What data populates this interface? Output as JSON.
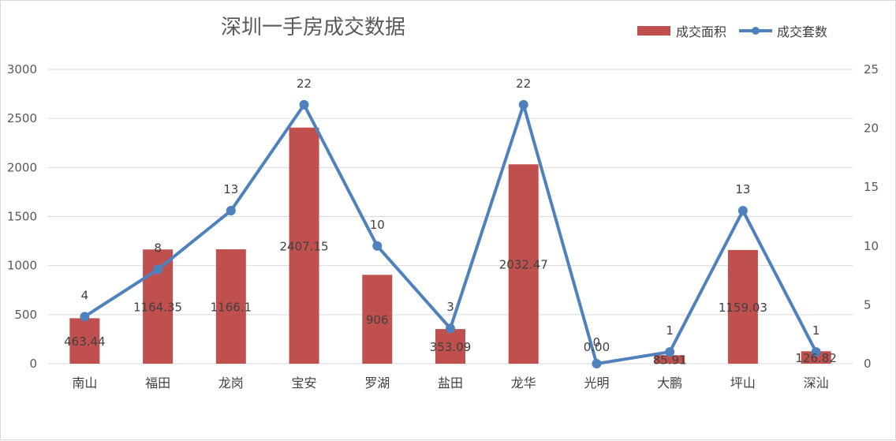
{
  "chart_data": {
    "type": "bar",
    "title": "深圳一手房成交数据",
    "categories": [
      "南山",
      "福田",
      "龙岗",
      "宝安",
      "罗湖",
      "盐田",
      "龙华",
      "光明",
      "大鹏",
      "坪山",
      "深汕"
    ],
    "series": [
      {
        "name": "成交面积",
        "type": "bar",
        "axis": "left",
        "color": "#C0504D",
        "values": [
          463.44,
          1164.35,
          1166.1,
          2407.15,
          906,
          353.09,
          2032.47,
          0.0,
          85.91,
          1159.03,
          126.82
        ],
        "labels": [
          "463.44",
          "1164.35",
          "1166.1",
          "2407.15",
          "906",
          "353.09",
          "2032.47",
          "0.00",
          "85.91",
          "1159.03",
          "126.82"
        ]
      },
      {
        "name": "成交套数",
        "type": "line",
        "axis": "right",
        "color": "#4F81BD",
        "values": [
          4,
          8,
          13,
          22,
          10,
          3,
          22,
          0,
          1,
          13,
          1
        ],
        "labels": [
          "4",
          "8",
          "13",
          "22",
          "10",
          "3",
          "22",
          "0",
          "1",
          "13",
          "1"
        ]
      }
    ],
    "y_left": {
      "min": 0,
      "max": 3000,
      "ticks": [
        "0",
        "500",
        "1000",
        "1500",
        "2000",
        "2500",
        "3000"
      ]
    },
    "y_right": {
      "min": 0,
      "max": 25,
      "ticks": [
        "0",
        "5",
        "10",
        "15",
        "20",
        "25"
      ]
    },
    "grid": true,
    "legend_position": "top-right"
  }
}
